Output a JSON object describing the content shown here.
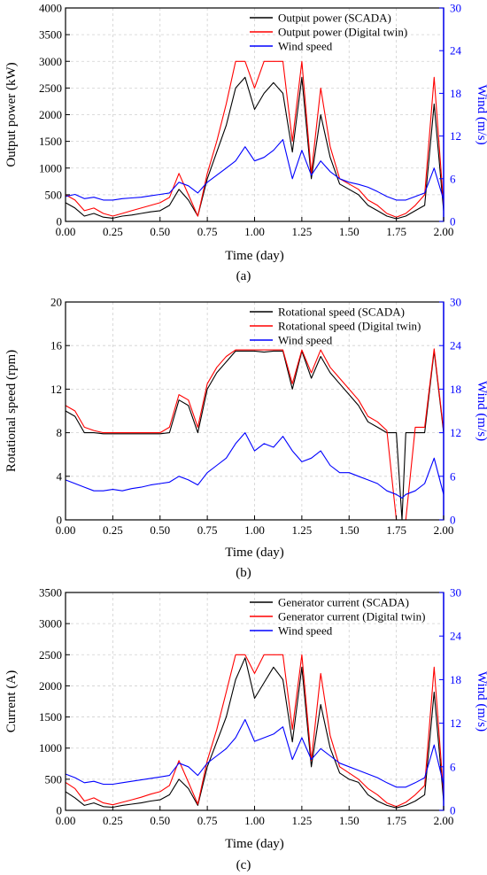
{
  "chart_data": [
    {
      "type": "line",
      "panel_label": "(a)",
      "xlabel": "Time (day)",
      "ylabel": "Output power (kW)",
      "y2label": "Wind (m/s)",
      "xlim": [
        0,
        2
      ],
      "ylim": [
        0,
        4000
      ],
      "y2lim": [
        0,
        30
      ],
      "xticks": [
        "0.00",
        "0.25",
        "0.50",
        "0.75",
        "1.00",
        "1.25",
        "1.50",
        "1.75",
        "2.00"
      ],
      "yticks": [
        "0",
        "500",
        "1000",
        "1500",
        "2000",
        "2500",
        "3000",
        "3500",
        "4000"
      ],
      "y2ticks": [
        "0",
        "6",
        "12",
        "18",
        "24",
        "30"
      ],
      "grid": true,
      "legend_position": "top-right",
      "x": [
        0.0,
        0.05,
        0.1,
        0.15,
        0.2,
        0.25,
        0.3,
        0.35,
        0.4,
        0.45,
        0.5,
        0.55,
        0.6,
        0.65,
        0.7,
        0.75,
        0.8,
        0.85,
        0.9,
        0.95,
        1.0,
        1.05,
        1.1,
        1.15,
        1.2,
        1.25,
        1.3,
        1.35,
        1.4,
        1.45,
        1.5,
        1.55,
        1.6,
        1.65,
        1.7,
        1.75,
        1.8,
        1.85,
        1.9,
        1.95,
        2.0
      ],
      "series": [
        {
          "name": "Output power (SCADA)",
          "color": "#000000",
          "axis": "left",
          "values": [
            350,
            250,
            100,
            150,
            80,
            60,
            100,
            120,
            150,
            180,
            200,
            300,
            600,
            400,
            100,
            800,
            1300,
            1800,
            2500,
            2700,
            2100,
            2400,
            2600,
            2400,
            1300,
            2700,
            800,
            2000,
            1200,
            700,
            600,
            500,
            300,
            200,
            100,
            50,
            100,
            200,
            300,
            2200,
            200
          ]
        },
        {
          "name": "Output power (Digital twin)",
          "color": "#ff0000",
          "axis": "left",
          "values": [
            500,
            400,
            200,
            250,
            150,
            100,
            150,
            200,
            250,
            300,
            350,
            450,
            900,
            500,
            100,
            900,
            1500,
            2200,
            3000,
            3000,
            2500,
            3000,
            3000,
            3000,
            1500,
            3000,
            900,
            2500,
            1400,
            800,
            700,
            600,
            400,
            300,
            150,
            80,
            150,
            300,
            500,
            2700,
            300
          ]
        },
        {
          "name": "Wind speed",
          "color": "#0000ff",
          "axis": "right",
          "values": [
            3.5,
            3.8,
            3.2,
            3.4,
            3.0,
            3.0,
            3.2,
            3.3,
            3.4,
            3.6,
            3.8,
            4.0,
            5.5,
            5.0,
            4.0,
            5.5,
            6.5,
            7.5,
            8.5,
            10.5,
            8.5,
            9.0,
            10.0,
            11.5,
            6.0,
            10.0,
            6.5,
            8.5,
            7.0,
            6.0,
            5.5,
            5.2,
            4.8,
            4.2,
            3.5,
            3.0,
            3.0,
            3.5,
            4.0,
            7.5,
            3.0
          ]
        }
      ]
    },
    {
      "type": "line",
      "panel_label": "(b)",
      "xlabel": "Time (day)",
      "ylabel": "Rotational speed (rpm)",
      "y2label": "Wind (m/s)",
      "xlim": [
        0,
        2
      ],
      "ylim": [
        0,
        20
      ],
      "y2lim": [
        0,
        30
      ],
      "xticks": [
        "0.00",
        "0.25",
        "0.50",
        "0.75",
        "1.00",
        "1.25",
        "1.50",
        "1.75",
        "2.00"
      ],
      "yticks": [
        "0",
        "4",
        "8",
        "12",
        "16",
        "20"
      ],
      "y2ticks": [
        "0",
        "6",
        "12",
        "18",
        "24",
        "30"
      ],
      "grid": true,
      "legend_position": "top-right",
      "x": [
        0.0,
        0.05,
        0.1,
        0.15,
        0.2,
        0.25,
        0.3,
        0.35,
        0.4,
        0.45,
        0.5,
        0.55,
        0.6,
        0.65,
        0.7,
        0.75,
        0.8,
        0.85,
        0.9,
        0.95,
        1.0,
        1.05,
        1.1,
        1.15,
        1.2,
        1.25,
        1.3,
        1.35,
        1.4,
        1.45,
        1.5,
        1.55,
        1.6,
        1.65,
        1.7,
        1.75,
        1.78,
        1.8,
        1.85,
        1.9,
        1.95,
        2.0
      ],
      "series": [
        {
          "name": "Rotational speed (SCADA)",
          "color": "#000000",
          "axis": "left",
          "values": [
            10.0,
            9.5,
            8.0,
            8.0,
            7.9,
            7.9,
            7.9,
            7.9,
            7.9,
            7.9,
            7.9,
            8.0,
            11.0,
            10.5,
            8.0,
            12.0,
            13.5,
            14.5,
            15.5,
            15.5,
            15.5,
            15.4,
            15.5,
            15.5,
            12.0,
            15.5,
            13.0,
            15.0,
            13.5,
            12.5,
            11.5,
            10.5,
            9.0,
            8.5,
            8.0,
            8.0,
            0.0,
            8.0,
            8.0,
            8.0,
            15.5,
            8.0
          ]
        },
        {
          "name": "Rotational speed (Digital twin)",
          "color": "#ff0000",
          "axis": "left",
          "values": [
            10.5,
            10.0,
            8.5,
            8.2,
            8.0,
            8.0,
            8.0,
            8.0,
            8.0,
            8.0,
            8.0,
            8.5,
            11.5,
            11.0,
            8.5,
            12.5,
            14.0,
            15.0,
            15.6,
            15.6,
            15.6,
            15.6,
            15.6,
            15.6,
            12.5,
            15.6,
            13.5,
            15.6,
            14.0,
            13.0,
            12.0,
            11.0,
            9.5,
            9.0,
            8.2,
            0.0,
            0.0,
            0.0,
            8.5,
            8.5,
            15.7,
            8.2
          ]
        },
        {
          "name": "Wind speed",
          "color": "#0000ff",
          "axis": "right",
          "values": [
            5.5,
            5.0,
            4.5,
            4.0,
            4.0,
            4.2,
            4.0,
            4.3,
            4.5,
            4.8,
            5.0,
            5.2,
            6.0,
            5.5,
            4.8,
            6.5,
            7.5,
            8.5,
            10.5,
            12.0,
            9.5,
            10.5,
            10.0,
            11.5,
            9.5,
            8.0,
            8.5,
            9.5,
            7.5,
            6.5,
            6.5,
            6.0,
            5.5,
            5.0,
            4.0,
            3.5,
            3.0,
            3.5,
            4.0,
            5.0,
            8.5,
            3.5
          ]
        }
      ]
    },
    {
      "type": "line",
      "panel_label": "(c)",
      "xlabel": "Time (day)",
      "ylabel": "Current (A)",
      "y2label": "Wind (m/s)",
      "xlim": [
        0,
        2
      ],
      "ylim": [
        0,
        3500
      ],
      "y2lim": [
        0,
        30
      ],
      "xticks": [
        "0.00",
        "0.25",
        "0.50",
        "0.75",
        "1.00",
        "1.25",
        "1.50",
        "1.75",
        "2.00"
      ],
      "yticks": [
        "0",
        "500",
        "1000",
        "1500",
        "2000",
        "2500",
        "3000",
        "3500"
      ],
      "y2ticks": [
        "0",
        "6",
        "12",
        "18",
        "24",
        "30"
      ],
      "grid": true,
      "legend_position": "top-right",
      "x": [
        0.0,
        0.05,
        0.1,
        0.15,
        0.2,
        0.25,
        0.3,
        0.35,
        0.4,
        0.45,
        0.5,
        0.55,
        0.6,
        0.65,
        0.7,
        0.75,
        0.8,
        0.85,
        0.9,
        0.95,
        1.0,
        1.05,
        1.1,
        1.15,
        1.2,
        1.25,
        1.3,
        1.35,
        1.4,
        1.45,
        1.5,
        1.55,
        1.6,
        1.65,
        1.7,
        1.75,
        1.8,
        1.85,
        1.9,
        1.95,
        2.0
      ],
      "series": [
        {
          "name": "Generator current (SCADA)",
          "color": "#000000",
          "axis": "left",
          "values": [
            300,
            200,
            80,
            120,
            60,
            50,
            80,
            100,
            120,
            150,
            170,
            250,
            500,
            350,
            80,
            700,
            1100,
            1500,
            2100,
            2450,
            1800,
            2050,
            2300,
            2100,
            1100,
            2300,
            700,
            1700,
            1000,
            600,
            500,
            450,
            250,
            150,
            80,
            40,
            80,
            150,
            250,
            1900,
            150
          ]
        },
        {
          "name": "Generator current (Digital twin)",
          "color": "#ff0000",
          "axis": "left",
          "values": [
            450,
            350,
            150,
            200,
            120,
            90,
            130,
            170,
            210,
            260,
            300,
            400,
            800,
            450,
            100,
            800,
            1300,
            1900,
            2500,
            2500,
            2200,
            2500,
            2500,
            2500,
            1300,
            2500,
            800,
            2200,
            1200,
            700,
            600,
            500,
            350,
            250,
            120,
            60,
            130,
            250,
            400,
            2300,
            250
          ]
        },
        {
          "name": "Wind speed",
          "color": "#0000ff",
          "axis": "right",
          "values": [
            5.0,
            4.5,
            3.8,
            4.0,
            3.6,
            3.6,
            3.8,
            4.0,
            4.2,
            4.4,
            4.6,
            4.8,
            6.5,
            6.0,
            4.8,
            6.5,
            7.5,
            8.5,
            10.0,
            12.5,
            9.5,
            10.0,
            10.5,
            11.5,
            7.0,
            10.0,
            7.0,
            8.5,
            7.5,
            6.5,
            6.0,
            5.5,
            5.0,
            4.5,
            3.8,
            3.2,
            3.2,
            3.8,
            4.5,
            9.0,
            3.5
          ]
        }
      ]
    }
  ]
}
